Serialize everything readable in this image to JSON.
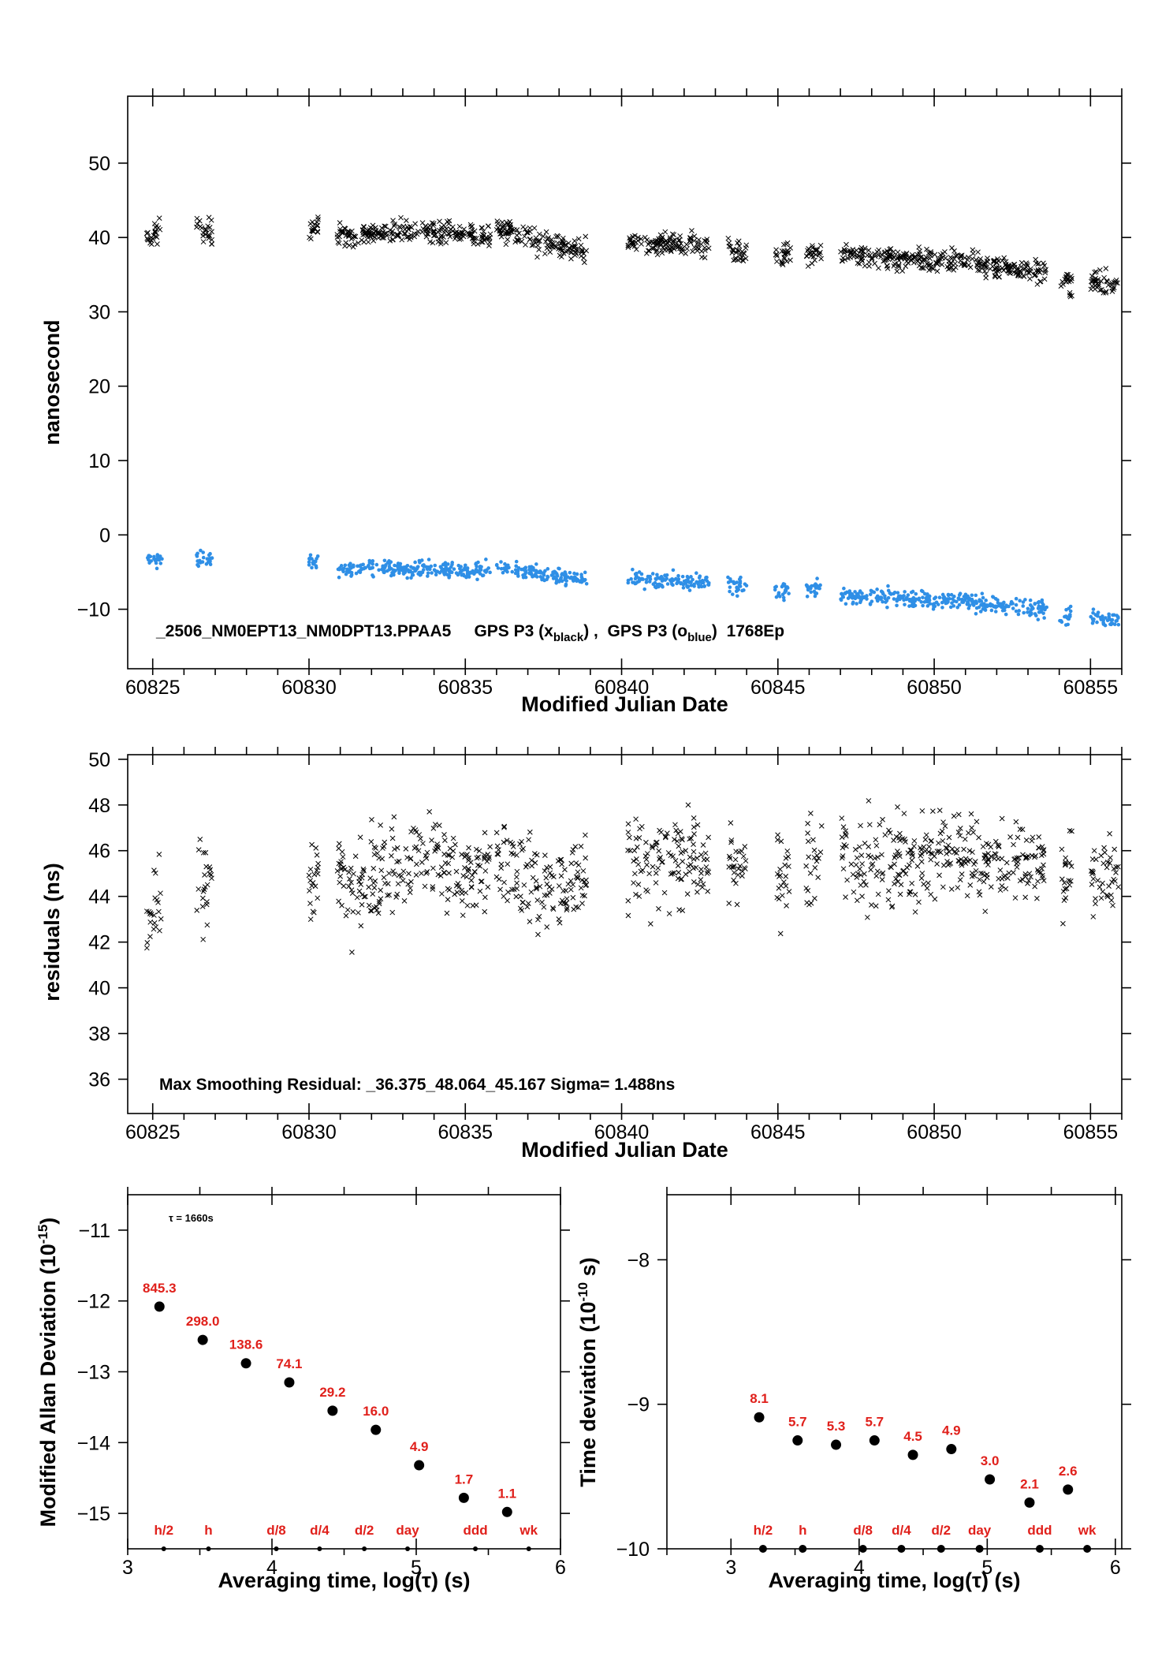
{
  "chart_data": [
    {
      "type": "scatter",
      "id": "p1",
      "xlabel": "Modified Julian Date",
      "ylabel": "nanosecond",
      "xlim": [
        60824.2,
        60856
      ],
      "ylim": [
        -18,
        59
      ],
      "xticks": [
        60825,
        60830,
        60835,
        60840,
        60845,
        60850,
        60855
      ],
      "yticks": [
        -10,
        0,
        10,
        20,
        30,
        40,
        50
      ],
      "annotation": {
        "prefix": "_2506_NM0EPT13_NM0DPT13.PPAA5     GPS P3 (x",
        "sub1": "black",
        "mid": ") ,  GPS P3 (o",
        "sub2": "blue",
        "suffix": ")  1768Ep"
      },
      "series": [
        {
          "marker": "x",
          "color": "#000000",
          "segments": [
            {
              "x": [
                60824.8,
                60825.3
              ],
              "y": [
                39.5,
                41.5
              ]
            },
            {
              "x": [
                60826.4,
                60826.9
              ],
              "y": [
                41.8,
                40.5
              ]
            },
            {
              "x": [
                60830.0,
                60830.3
              ],
              "y": [
                40.5,
                41.5
              ]
            },
            {
              "x": [
                60830.9,
                60831.6
              ],
              "y": [
                41.0,
                39.2
              ]
            },
            {
              "x": [
                60831.6,
                60833.5
              ],
              "y": [
                40.5,
                41.0
              ]
            },
            {
              "x": [
                60833.5,
                60835.8
              ],
              "y": [
                41.0,
                40.3
              ]
            },
            {
              "x": [
                60836.0,
                60837.3
              ],
              "y": [
                41.0,
                40.0
              ]
            },
            {
              "x": [
                60837.3,
                60838.9
              ],
              "y": [
                39.2,
                38.3
              ]
            },
            {
              "x": [
                60840.2,
                60842.8
              ],
              "y": [
                39.5,
                38.8
              ]
            },
            {
              "x": [
                60843.4,
                60844.0
              ],
              "y": [
                38.4,
                38.0
              ]
            },
            {
              "x": [
                60844.9,
                60845.4
              ],
              "y": [
                37.8,
                37.8
              ]
            },
            {
              "x": [
                60845.9,
                60846.4
              ],
              "y": [
                38.0,
                37.8
              ]
            },
            {
              "x": [
                60847.0,
                60851.0
              ],
              "y": [
                37.5,
                36.8
              ]
            },
            {
              "x": [
                60851.0,
                60853.6
              ],
              "y": [
                36.8,
                35.2
              ]
            },
            {
              "x": [
                60854.0,
                60854.4
              ],
              "y": [
                34.0,
                33.8
              ]
            },
            {
              "x": [
                60855.0,
                60855.9
              ],
              "y": [
                34.0,
                33.5
              ]
            }
          ]
        },
        {
          "marker": "o",
          "color": "#2f8fe6",
          "segments": [
            {
              "x": [
                60824.8,
                60825.3
              ],
              "y": [
                -3.0,
                -3.2
              ]
            },
            {
              "x": [
                60826.4,
                60826.9
              ],
              "y": [
                -3.2,
                -3.6
              ]
            },
            {
              "x": [
                60830.0,
                60830.3
              ],
              "y": [
                -3.3,
                -3.8
              ]
            },
            {
              "x": [
                60830.9,
                60833.5
              ],
              "y": [
                -4.6,
                -4.5
              ]
            },
            {
              "x": [
                60833.5,
                60835.8
              ],
              "y": [
                -4.5,
                -4.9
              ]
            },
            {
              "x": [
                60836.0,
                60837.3
              ],
              "y": [
                -4.6,
                -5.2
              ]
            },
            {
              "x": [
                60837.3,
                60838.9
              ],
              "y": [
                -5.4,
                -6.0
              ]
            },
            {
              "x": [
                60840.2,
                60842.8
              ],
              "y": [
                -5.8,
                -6.5
              ]
            },
            {
              "x": [
                60843.4,
                60844.0
              ],
              "y": [
                -6.8,
                -6.9
              ]
            },
            {
              "x": [
                60844.9,
                60845.4
              ],
              "y": [
                -7.2,
                -7.4
              ]
            },
            {
              "x": [
                60845.9,
                60846.4
              ],
              "y": [
                -7.0,
                -7.4
              ]
            },
            {
              "x": [
                60847.0,
                60851.0
              ],
              "y": [
                -8.3,
                -8.8
              ]
            },
            {
              "x": [
                60851.0,
                60853.6
              ],
              "y": [
                -8.9,
                -10.0
              ]
            },
            {
              "x": [
                60854.0,
                60854.4
              ],
              "y": [
                -11.5,
                -10.5
              ]
            },
            {
              "x": [
                60855.0,
                60855.9
              ],
              "y": [
                -11.0,
                -11.6
              ]
            }
          ]
        }
      ]
    },
    {
      "type": "scatter",
      "id": "p2",
      "xlabel": "Modified Julian Date",
      "ylabel": "residuals (ns)",
      "xlim": [
        60824.2,
        60856
      ],
      "ylim": [
        34.5,
        50.2
      ],
      "xticks": [
        60825,
        60830,
        60835,
        60840,
        60845,
        60850,
        60855
      ],
      "yticks": [
        36,
        38,
        40,
        42,
        44,
        46,
        48,
        50
      ],
      "annotation": "Max Smoothing Residual: _36.375_48.064_45.167  Sigma= 1.488ns",
      "series": [
        {
          "marker": "x",
          "color": "#000000",
          "segments": [
            {
              "x": [
                60824.8,
                60825.3
              ],
              "y": [
                42.5,
                44.0
              ]
            },
            {
              "x": [
                60826.4,
                60826.9
              ],
              "y": [
                44.5,
                45.0
              ]
            },
            {
              "x": [
                60830.0,
                60830.3
              ],
              "y": [
                44.5,
                45.0
              ]
            },
            {
              "x": [
                60830.9,
                60831.6
              ],
              "y": [
                45.5,
                43.8
              ]
            },
            {
              "x": [
                60831.6,
                60833.5
              ],
              "y": [
                44.5,
                45.5
              ]
            },
            {
              "x": [
                60833.5,
                60835.8
              ],
              "y": [
                45.5,
                45.0
              ]
            },
            {
              "x": [
                60836.0,
                60837.3
              ],
              "y": [
                45.5,
                44.5
              ]
            },
            {
              "x": [
                60837.3,
                60838.9
              ],
              "y": [
                44.0,
                44.8
              ]
            },
            {
              "x": [
                60840.2,
                60842.8
              ],
              "y": [
                45.0,
                45.8
              ]
            },
            {
              "x": [
                60843.4,
                60844.0
              ],
              "y": [
                45.3,
                45.5
              ]
            },
            {
              "x": [
                60844.9,
                60845.4
              ],
              "y": [
                45.0,
                45.3
              ]
            },
            {
              "x": [
                60845.9,
                60846.4
              ],
              "y": [
                45.0,
                45.5
              ]
            },
            {
              "x": [
                60847.0,
                60851.0
              ],
              "y": [
                45.5,
                45.8
              ]
            },
            {
              "x": [
                60851.0,
                60853.6
              ],
              "y": [
                45.6,
                45.3
              ]
            },
            {
              "x": [
                60854.0,
                60854.4
              ],
              "y": [
                45.0,
                45.5
              ]
            },
            {
              "x": [
                60855.0,
                60855.9
              ],
              "y": [
                45.2,
                44.8
              ]
            }
          ]
        }
      ]
    },
    {
      "type": "scatter",
      "id": "p3",
      "xlabel": "Averaging time, log(τ) (s)",
      "ylabel": "Modified Allan Deviation (10",
      "ylabel_sup": "-15",
      "ylabel_end": ")",
      "xlim": [
        3,
        6
      ],
      "ylim": [
        -15.5,
        -10.5
      ],
      "xticks": [
        3,
        4,
        5,
        6
      ],
      "yticks": [
        -15,
        -14,
        -13,
        -12,
        -11
      ],
      "note": "τ = 1660s",
      "points": [
        {
          "x": 3.22,
          "y": -12.08,
          "label": "845.3"
        },
        {
          "x": 3.52,
          "y": -12.55,
          "label": "298.0"
        },
        {
          "x": 3.82,
          "y": -12.88,
          "label": "138.6"
        },
        {
          "x": 4.12,
          "y": -13.15,
          "label": "74.1"
        },
        {
          "x": 4.42,
          "y": -13.55,
          "label": "29.2"
        },
        {
          "x": 4.72,
          "y": -13.82,
          "label": "16.0"
        },
        {
          "x": 5.02,
          "y": -14.32,
          "label": "4.9"
        },
        {
          "x": 5.33,
          "y": -14.78,
          "label": "1.7"
        },
        {
          "x": 5.63,
          "y": -14.98,
          "label": "1.1"
        }
      ],
      "markers": [
        {
          "x": 3.25,
          "label": "h/2"
        },
        {
          "x": 3.56,
          "label": "h"
        },
        {
          "x": 4.03,
          "label": "d/8"
        },
        {
          "x": 4.33,
          "label": "d/4"
        },
        {
          "x": 4.64,
          "label": "d/2"
        },
        {
          "x": 4.94,
          "label": "day"
        },
        {
          "x": 5.41,
          "label": "ddd"
        },
        {
          "x": 5.78,
          "label": "wk"
        }
      ]
    },
    {
      "type": "scatter",
      "id": "p4",
      "xlabel": "Averaging time, log(τ) (s)",
      "ylabel": "Time deviation (10",
      "ylabel_sup": "-10",
      "ylabel_end": " s)",
      "xlim": [
        2.5,
        6.05
      ],
      "ylim": [
        -10,
        -7.55
      ],
      "xticks": [
        3,
        4,
        5,
        6
      ],
      "yticks": [
        -10,
        -9,
        -8
      ],
      "points": [
        {
          "x": 3.22,
          "y": -9.09,
          "label": "8.1"
        },
        {
          "x": 3.52,
          "y": -9.25,
          "label": "5.7"
        },
        {
          "x": 3.82,
          "y": -9.28,
          "label": "5.3"
        },
        {
          "x": 4.12,
          "y": -9.25,
          "label": "5.7"
        },
        {
          "x": 4.42,
          "y": -9.35,
          "label": "4.5"
        },
        {
          "x": 4.72,
          "y": -9.31,
          "label": "4.9"
        },
        {
          "x": 5.02,
          "y": -9.52,
          "label": "3.0"
        },
        {
          "x": 5.33,
          "y": -9.68,
          "label": "2.1"
        },
        {
          "x": 5.63,
          "y": -9.59,
          "label": "2.6"
        }
      ],
      "markers": [
        {
          "x": 3.25,
          "label": "h/2"
        },
        {
          "x": 3.56,
          "label": "h"
        },
        {
          "x": 4.03,
          "label": "d/8"
        },
        {
          "x": 4.33,
          "label": "d/4"
        },
        {
          "x": 4.64,
          "label": "d/2"
        },
        {
          "x": 4.94,
          "label": "day"
        },
        {
          "x": 5.41,
          "label": "ddd"
        },
        {
          "x": 5.78,
          "label": "wk"
        }
      ]
    }
  ]
}
